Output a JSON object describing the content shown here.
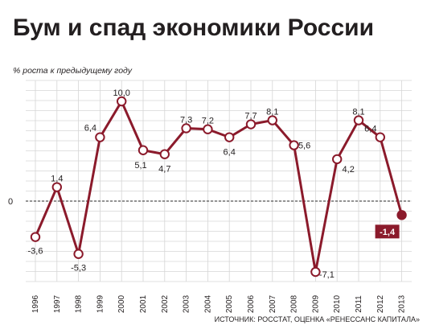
{
  "title": "Бум и спад экономики России",
  "unit_label": "% роста к предыдущему году",
  "zero_label": "0",
  "source": "ИСТОЧНИК: РОССТАТ, ОЦЕНКА «РЕНЕССАНС КАПИТАЛА»",
  "colors": {
    "line": "#8b1a2b",
    "grid": "#d6d6d6",
    "zero_line": "#555555",
    "highlight_box": "#8b1a2b"
  },
  "chart_data": {
    "type": "line",
    "title": "Бум и спад экономики России",
    "ylabel": "% роста к предыдущему году",
    "xlabel": "",
    "ylim": [
      -8.5,
      12
    ],
    "grid": true,
    "categories": [
      "1996",
      "1997",
      "1998",
      "1999",
      "2000",
      "2001",
      "2002",
      "2003",
      "2004",
      "2005",
      "2006",
      "2007",
      "2008",
      "2009",
      "2010",
      "2011",
      "2012",
      "2013"
    ],
    "values": [
      -3.6,
      1.4,
      -5.3,
      6.4,
      10.0,
      5.1,
      4.7,
      7.3,
      7.2,
      6.4,
      7.7,
      8.1,
      5.6,
      -7.1,
      4.2,
      8.1,
      6.4,
      -1.4
    ],
    "value_labels": [
      "-3,6",
      "1,4",
      "-5,3",
      "6,4",
      "10,0",
      "5,1",
      "4,7",
      "7,3",
      "7,2",
      "6,4",
      "7,7",
      "8,1",
      "5,6",
      "-7,1",
      "4,2",
      "8,1",
      "6,4",
      "-1,4"
    ],
    "highlight_last": true
  }
}
